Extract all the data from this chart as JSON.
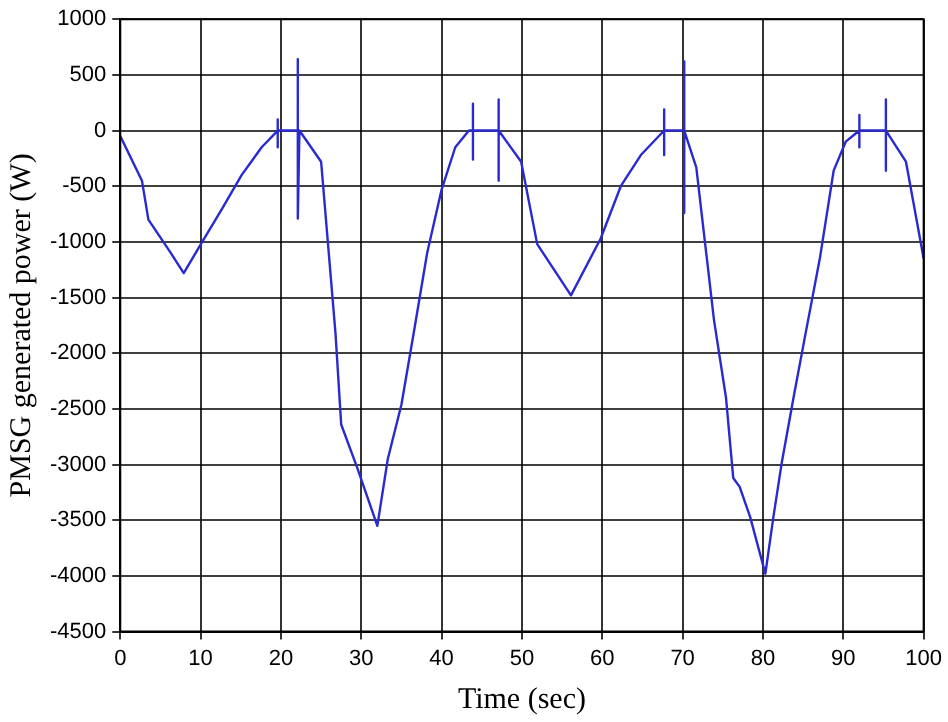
{
  "chart_data": {
    "type": "line",
    "xlabel": "Time (sec)",
    "ylabel": "PMSG generated power (W)",
    "xlim": [
      0,
      100
    ],
    "xticks": [
      0,
      10,
      20,
      30,
      40,
      50,
      60,
      70,
      80,
      90,
      100
    ],
    "ylim": [
      -4500,
      1000
    ],
    "yticks": [
      -4500,
      -4000,
      -3500,
      -3000,
      -2500,
      -2000,
      -1500,
      -1000,
      -500,
      0,
      500,
      1000
    ],
    "grid": true,
    "legend": false,
    "marker": "none",
    "line_style": "solid",
    "series": [
      {
        "color": "#2a2ad0",
        "x": [
          0,
          2.7,
          3.5,
          6.2,
          7.9,
          10.2,
          12.7,
          15.1,
          17.6,
          19.6,
          19.6,
          19.6,
          19.6,
          22.1,
          22.1,
          22.1,
          22.3,
          25,
          26.8,
          27.5,
          29.5,
          32,
          33.3,
          35,
          36.5,
          38.2,
          40,
          41.7,
          43.4,
          43.9,
          43.9,
          43.9,
          43.9,
          47.1,
          47.1,
          47.1,
          47.1,
          49.9,
          51.9,
          56.1,
          59.8,
          62.3,
          64.8,
          67.7,
          67.7,
          67.7,
          67.7,
          70.2,
          70.2,
          70.2,
          70.2,
          71.7,
          73.9,
          75.4,
          76.3,
          77.1,
          78.4,
          80.3,
          81.3,
          82.3,
          83.8,
          85.1,
          87.1,
          88.8,
          90.3,
          92,
          92,
          92,
          92,
          95.3,
          95.3,
          95.3,
          95.3,
          97.8,
          100
        ],
        "values": [
          -50,
          -450,
          -800,
          -1090,
          -1280,
          -1000,
          -700,
          -400,
          -150,
          0,
          100,
          -150,
          0,
          0,
          640,
          -790,
          0,
          -280,
          -1830,
          -2640,
          -3030,
          -3550,
          -2950,
          -2460,
          -1830,
          -1100,
          -530,
          -150,
          0,
          0,
          240,
          -260,
          0,
          0,
          280,
          -450,
          0,
          -280,
          -1020,
          -1480,
          -970,
          -500,
          -220,
          0,
          190,
          -220,
          0,
          0,
          620,
          -740,
          0,
          -330,
          -1700,
          -2400,
          -3120,
          -3200,
          -3470,
          -3980,
          -3470,
          -3000,
          -2400,
          -1900,
          -1140,
          -360,
          -100,
          0,
          140,
          -150,
          0,
          0,
          280,
          -360,
          0,
          -280,
          -1150
        ]
      }
    ]
  }
}
